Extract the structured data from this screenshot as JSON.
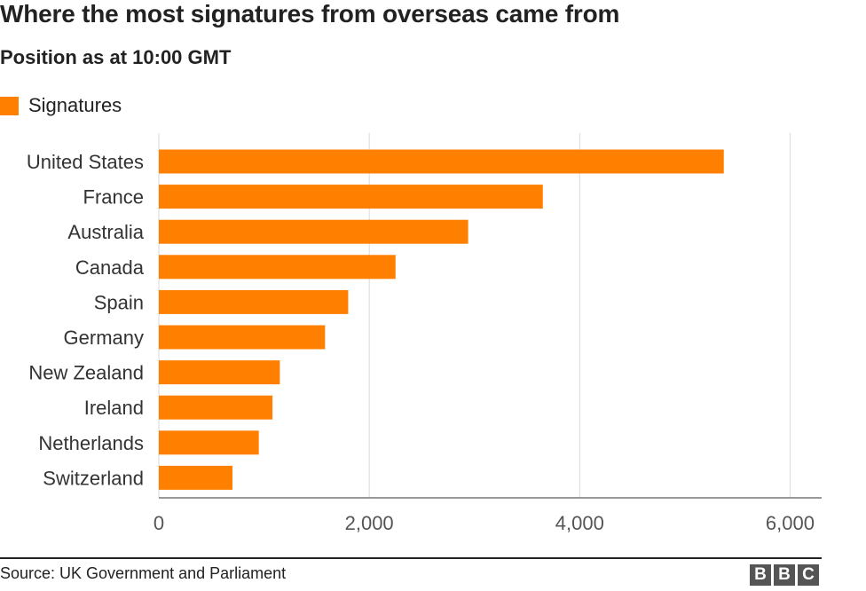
{
  "title": "Where the most signatures from overseas came from",
  "subtitle": "Position as at 10:00 GMT",
  "source": "Source: UK Government and Parliament",
  "logo_letters": [
    "B",
    "B",
    "C"
  ],
  "colors": {
    "bar": "#ff7f00",
    "grid": "#d9d9d9",
    "text": "#222222",
    "axis_text": "#555555"
  },
  "chart_data": {
    "type": "bar",
    "orientation": "horizontal",
    "title": "Where the most signatures from overseas came from",
    "subtitle": "Position as at 10:00 GMT",
    "categories": [
      "United States",
      "France",
      "Australia",
      "Canada",
      "Spain",
      "Germany",
      "New Zealand",
      "Ireland",
      "Netherlands",
      "Switzerland"
    ],
    "series": [
      {
        "name": "Signatures",
        "values": [
          5370,
          3650,
          2940,
          2250,
          1800,
          1580,
          1150,
          1080,
          950,
          700
        ]
      }
    ],
    "xlim": [
      0,
      6300
    ],
    "xticks": [
      0,
      2000,
      4000,
      6000
    ],
    "xtick_labels": [
      "0",
      "2,000",
      "4,000",
      "6,000"
    ],
    "grid": true,
    "legend_position": "top-left"
  }
}
